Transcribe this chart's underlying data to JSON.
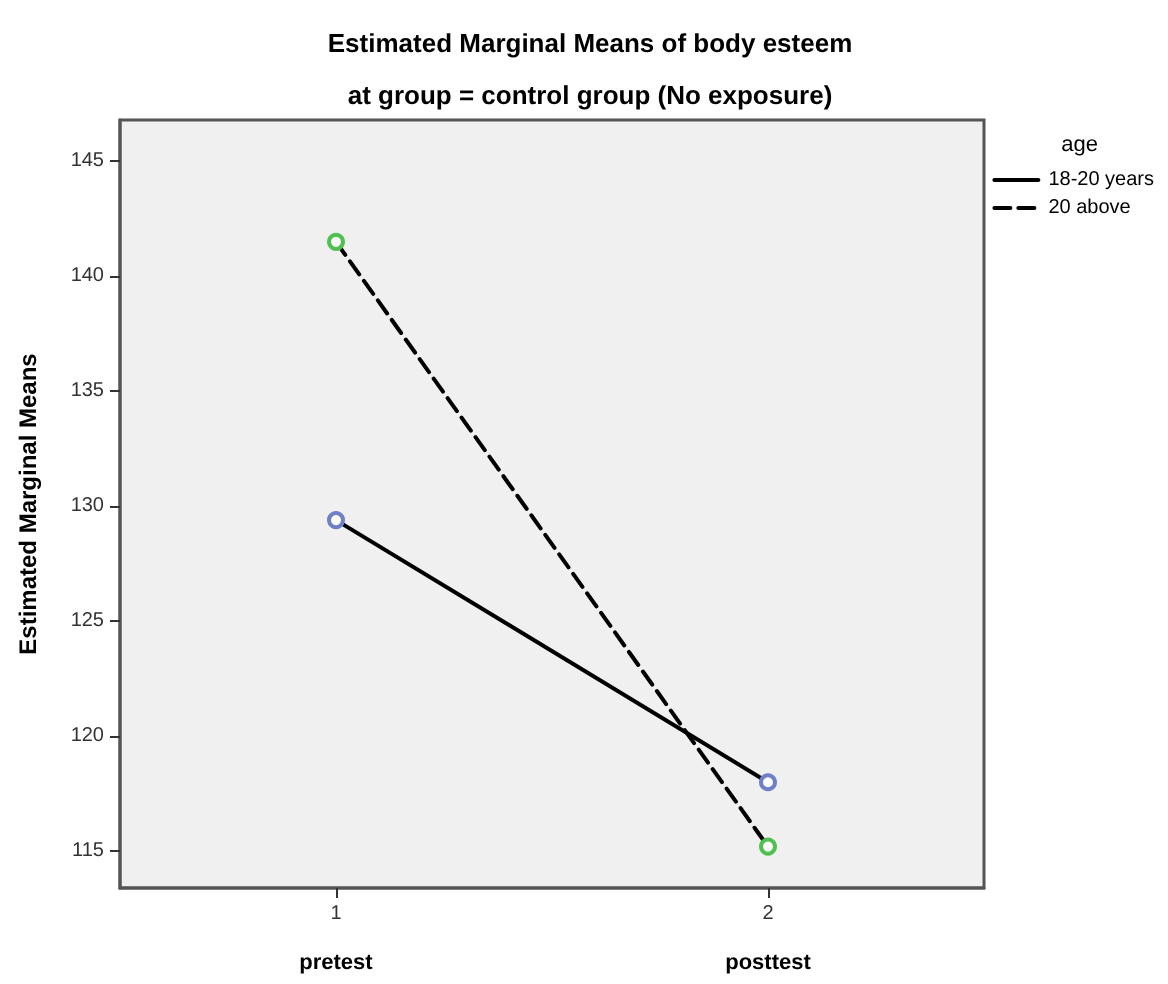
{
  "chart_data": {
    "type": "line",
    "title": "Estimated Marginal Means of body esteem",
    "subtitle": "at group = control group (No exposure)",
    "ylabel": "Estimated Marginal Means",
    "legend_title": "age",
    "categories": [
      "1",
      "2"
    ],
    "series": [
      {
        "name": "18-20 years",
        "color": "#000000",
        "colors": [
          "#7080c8",
          "#7080c8"
        ],
        "line_style": "solid",
        "values": [
          129.4,
          118.0
        ]
      },
      {
        "name": "20 above",
        "color": "#000000",
        "colors": [
          "#50c050",
          "#50c050"
        ],
        "line_style": "dashed",
        "values": [
          141.5,
          115.2
        ]
      }
    ],
    "annotations": [
      "pretest",
      "posttest"
    ],
    "ylim": [
      113.4,
      146.8
    ],
    "yticks": [
      115,
      120,
      125,
      130,
      135,
      140,
      145
    ],
    "grid": false,
    "legend": "top right",
    "marker": "circle"
  }
}
